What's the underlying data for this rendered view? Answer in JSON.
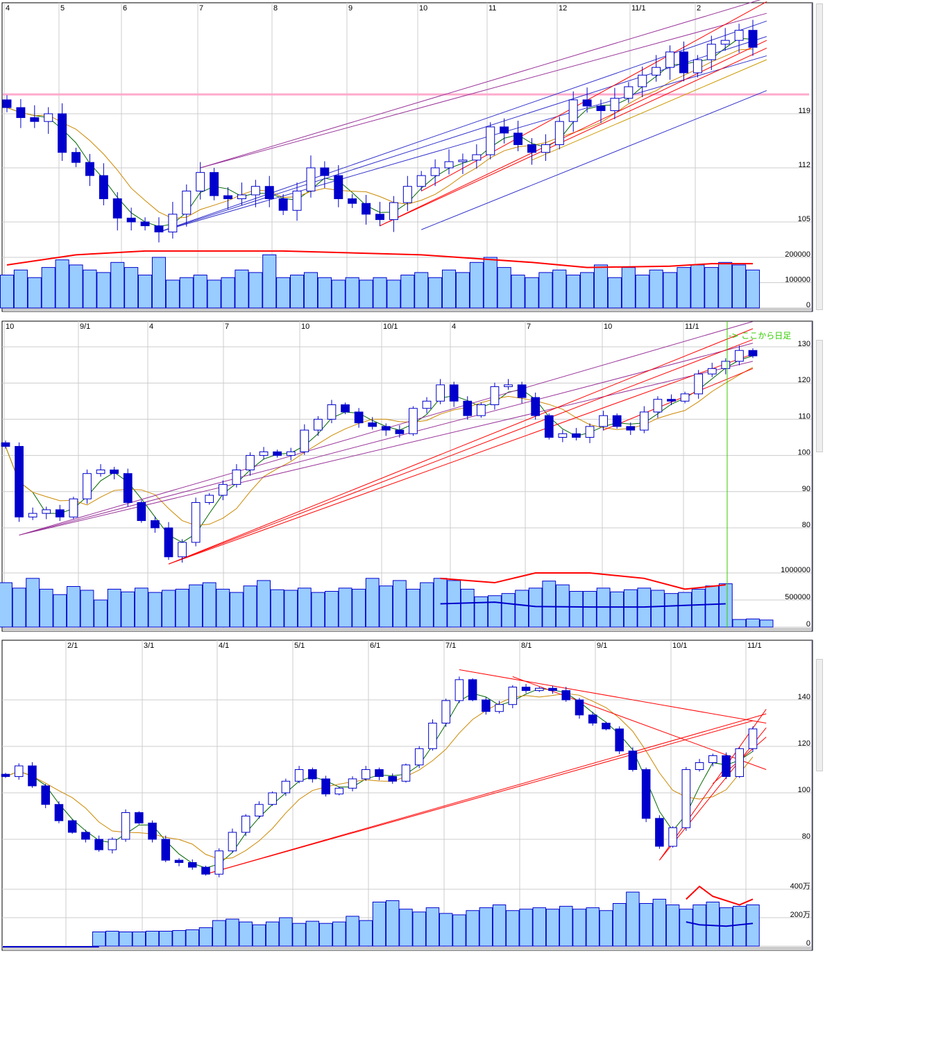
{
  "chart_data": [
    {
      "type": "candlestick",
      "panel": "top",
      "date_labels": [
        "4",
        "5",
        "6",
        "7",
        "8",
        "9",
        "10",
        "11",
        "12",
        "11/1",
        "2"
      ],
      "price_ticks": [
        "119",
        "112",
        "105"
      ],
      "volume_ticks": [
        "200000",
        "100000",
        "0"
      ],
      "ylim": [
        102,
        133.5
      ],
      "horizontal_line": {
        "price": 121.5,
        "color": "#ffaacc"
      },
      "closes": [
        119.8,
        118.5,
        118,
        119,
        114,
        112.7,
        111,
        108,
        105.5,
        105,
        104.5,
        103.7,
        106,
        109,
        111.4,
        108.4,
        108,
        108.5,
        109.6,
        108,
        106.5,
        109,
        112,
        111,
        108,
        107.4,
        106,
        105.3,
        107.5,
        109.6,
        111,
        112,
        112.8,
        113,
        113.7,
        117.3,
        116.5,
        115,
        114,
        115,
        118,
        120.8,
        120,
        119.4,
        121,
        122.5,
        124,
        125,
        127,
        124.3,
        126,
        128,
        128.5,
        129.8,
        127.6
      ],
      "volumes": [
        130000,
        150000,
        120000,
        160000,
        190000,
        170000,
        150000,
        140000,
        180000,
        160000,
        130000,
        200000,
        110000,
        120000,
        130000,
        110000,
        120000,
        150000,
        140000,
        210000,
        120000,
        130000,
        140000,
        120000,
        110000,
        120000,
        110000,
        120000,
        110000,
        130000,
        140000,
        120000,
        150000,
        140000,
        180000,
        200000,
        160000,
        130000,
        120000,
        140000,
        150000,
        130000,
        140000,
        170000,
        120000,
        160000,
        130000,
        150000,
        140000,
        160000,
        170000,
        160000,
        180000,
        170000,
        150000
      ],
      "volume_ma_long": [
        {
          "i": 0,
          "v": 170000
        },
        {
          "i": 5,
          "v": 210000
        },
        {
          "i": 10,
          "v": 225000
        },
        {
          "i": 20,
          "v": 225000
        },
        {
          "i": 30,
          "v": 210000
        },
        {
          "i": 38,
          "v": 180000
        },
        {
          "i": 42,
          "v": 160000
        },
        {
          "i": 48,
          "v": 165000
        },
        {
          "i": 51,
          "v": 175000
        },
        {
          "i": 54,
          "v": 175000
        }
      ],
      "trendlines": [
        {
          "from": [
            11,
            103.7
          ],
          "to": [
            55,
            131
          ],
          "color": "#3333cc"
        },
        {
          "from": [
            11,
            103.7
          ],
          "to": [
            55,
            129
          ],
          "color": "#3333cc"
        },
        {
          "from": [
            11,
            103.7
          ],
          "to": [
            55,
            126.5
          ],
          "color": "#3333cc"
        },
        {
          "from": [
            14,
            112
          ],
          "to": [
            55,
            134
          ],
          "color": "#993399"
        },
        {
          "from": [
            14,
            112
          ],
          "to": [
            55,
            132
          ],
          "color": "#993399"
        },
        {
          "from": [
            27,
            104.5
          ],
          "to": [
            55,
            127.5
          ],
          "color": "#ff0000"
        },
        {
          "from": [
            27,
            104.5
          ],
          "to": [
            55,
            128.5
          ],
          "color": "#ff0000"
        },
        {
          "from": [
            30,
            109
          ],
          "to": [
            55,
            133.5
          ],
          "color": "#ff0000"
        },
        {
          "from": [
            30,
            104
          ],
          "to": [
            55,
            122
          ],
          "color": "#3333cc"
        },
        {
          "from": [
            38,
            113
          ],
          "to": [
            55,
            126
          ],
          "color": "#cc9900"
        }
      ]
    },
    {
      "type": "candlestick",
      "panel": "middle",
      "date_labels": [
        "10",
        "9/1",
        "4",
        "7",
        "10",
        "10/1",
        "4",
        "7",
        "10",
        "11/1"
      ],
      "price_ticks": [
        "130",
        "120",
        "110",
        "100",
        "90",
        "80"
      ],
      "volume_ticks": [
        "1000000",
        "500000",
        "0"
      ],
      "ylim": [
        68,
        137
      ],
      "annotation": "-> ここから日足",
      "closes": [
        102.5,
        83,
        84,
        85,
        83,
        88,
        95,
        96,
        95,
        87,
        82,
        80,
        72,
        76,
        87,
        89,
        92,
        96,
        100,
        101,
        100,
        101,
        107,
        110,
        114,
        112,
        109,
        108,
        107,
        106,
        113,
        115,
        119.5,
        115,
        111,
        114,
        119,
        119.5,
        116,
        111,
        105,
        106,
        105,
        108,
        111,
        108,
        107,
        112,
        115.5,
        115,
        117,
        122.5,
        124,
        126,
        129,
        127.5
      ],
      "volumes": [
        820000,
        720000,
        900000,
        700000,
        600000,
        750000,
        680000,
        500000,
        700000,
        650000,
        720000,
        640000,
        680000,
        700000,
        780000,
        820000,
        700000,
        640000,
        760000,
        860000,
        690000,
        680000,
        720000,
        640000,
        660000,
        720000,
        700000,
        900000,
        760000,
        860000,
        700000,
        820000,
        900000,
        860000,
        700000,
        560000,
        580000,
        620000,
        680000,
        720000,
        850000,
        780000,
        660000,
        660000,
        720000,
        650000,
        690000,
        720000,
        680000,
        620000,
        640000,
        700000,
        760000,
        800000,
        140000,
        150000,
        130000
      ],
      "volume_ma_long": [
        {
          "i": 32,
          "v": 900000
        },
        {
          "i": 36,
          "v": 820000
        },
        {
          "i": 39,
          "v": 1000000
        },
        {
          "i": 43,
          "v": 1000000
        },
        {
          "i": 47,
          "v": 900000
        },
        {
          "i": 50,
          "v": 700000
        },
        {
          "i": 53,
          "v": 780000
        }
      ],
      "volume_ma_short": [
        {
          "i": 32,
          "v": 430000
        },
        {
          "i": 36,
          "v": 460000
        },
        {
          "i": 39,
          "v": 380000
        },
        {
          "i": 43,
          "v": 370000
        },
        {
          "i": 47,
          "v": 370000
        },
        {
          "i": 50,
          "v": 400000
        },
        {
          "i": 53,
          "v": 430000
        }
      ],
      "trendlines": [
        {
          "from": [
            1,
            78
          ],
          "to": [
            55,
            137
          ],
          "color": "#993399"
        },
        {
          "from": [
            1,
            78
          ],
          "to": [
            55,
            131
          ],
          "color": "#993399"
        },
        {
          "from": [
            1,
            78
          ],
          "to": [
            55,
            126
          ],
          "color": "#993399"
        },
        {
          "from": [
            12,
            70
          ],
          "to": [
            55,
            135
          ],
          "color": "#ff0000"
        },
        {
          "from": [
            12,
            70
          ],
          "to": [
            55,
            132
          ],
          "color": "#ff0000"
        },
        {
          "from": [
            12,
            70
          ],
          "to": [
            55,
            128
          ],
          "color": "#ff0000"
        },
        {
          "from": [
            44,
            107
          ],
          "to": [
            55,
            124
          ],
          "color": "#ff0000"
        }
      ]
    },
    {
      "type": "candlestick",
      "panel": "bottom",
      "date_labels": [
        "2/1",
        "3/1",
        "4/1",
        "5/1",
        "6/1",
        "7/1",
        "8/1",
        "9/1",
        "10/1",
        "11/1"
      ],
      "price_ticks": [
        "140",
        "120",
        "100",
        "80"
      ],
      "volume_ticks": [
        "400万",
        "200万",
        "0"
      ],
      "ylim": [
        55,
        165
      ],
      "closes": [
        107,
        111.6,
        103,
        95,
        88,
        83,
        80,
        75.5,
        80,
        91.5,
        87,
        80,
        71,
        70,
        68,
        65,
        75,
        83,
        90,
        95,
        100,
        105,
        110,
        106,
        99.5,
        102,
        106,
        110,
        107,
        105,
        112,
        119,
        130,
        139.7,
        148.7,
        140,
        135,
        138,
        145.5,
        144,
        145,
        144,
        140,
        133.5,
        130,
        127.5,
        118,
        110,
        89,
        77,
        85,
        110,
        113,
        116,
        107,
        119,
        127.5
      ],
      "volumes": [
        0,
        0,
        0,
        0,
        0,
        0,
        0,
        1000000,
        1050000,
        1000000,
        1000000,
        1050000,
        1050000,
        1100000,
        1150000,
        1300000,
        1800000,
        1900000,
        1700000,
        1500000,
        1700000,
        2000000,
        1600000,
        1750000,
        1600000,
        1700000,
        2100000,
        1800000,
        3100000,
        3200000,
        2600000,
        2400000,
        2700000,
        2300000,
        2200000,
        2500000,
        2700000,
        2900000,
        2500000,
        2600000,
        2700000,
        2600000,
        2800000,
        2600000,
        2700000,
        2500000,
        3000000,
        3800000,
        3000000,
        3300000,
        2900000,
        2600000,
        2900000,
        3100000,
        2700000,
        2800000,
        2900000
      ],
      "volume_ma_long": [
        {
          "i": 51,
          "v": 3300000
        },
        {
          "i": 52,
          "v": 4200000
        },
        {
          "i": 53,
          "v": 3500000
        },
        {
          "i": 55,
          "v": 2900000
        },
        {
          "i": 56,
          "v": 3300000
        }
      ],
      "volume_ma_short": [
        {
          "i": 51,
          "v": 1700000
        },
        {
          "i": 52,
          "v": 1500000
        },
        {
          "i": 54,
          "v": 1400000
        },
        {
          "i": 56,
          "v": 1600000
        }
      ],
      "trendlines": [
        {
          "from": [
            15,
            65
          ],
          "to": [
            56,
            131
          ],
          "color": "#ff0000"
        },
        {
          "from": [
            15,
            65
          ],
          "to": [
            57,
            134
          ],
          "color": "#ff0000"
        },
        {
          "from": [
            34,
            153
          ],
          "to": [
            57,
            130
          ],
          "color": "#ff0000"
        },
        {
          "from": [
            38,
            150
          ],
          "to": [
            57,
            110
          ],
          "color": "#ff0000"
        },
        {
          "from": [
            49,
            71
          ],
          "to": [
            57,
            136
          ],
          "color": "#ff0000"
        },
        {
          "from": [
            49,
            71
          ],
          "to": [
            57,
            128
          ],
          "color": "#ff0000"
        },
        {
          "from": [
            53,
            104
          ],
          "to": [
            57,
            124
          ],
          "color": "#ff0000"
        }
      ]
    }
  ],
  "colors": {
    "down": "#0000cc",
    "up_fill": "#ffffff",
    "volume_fill": "#99ccff",
    "volume_border": "#0000cc",
    "ma_short": "#006600",
    "ma_long": "#cc8800",
    "vol_ma_long": "#ff0000",
    "vol_ma_short": "#0000cc"
  }
}
